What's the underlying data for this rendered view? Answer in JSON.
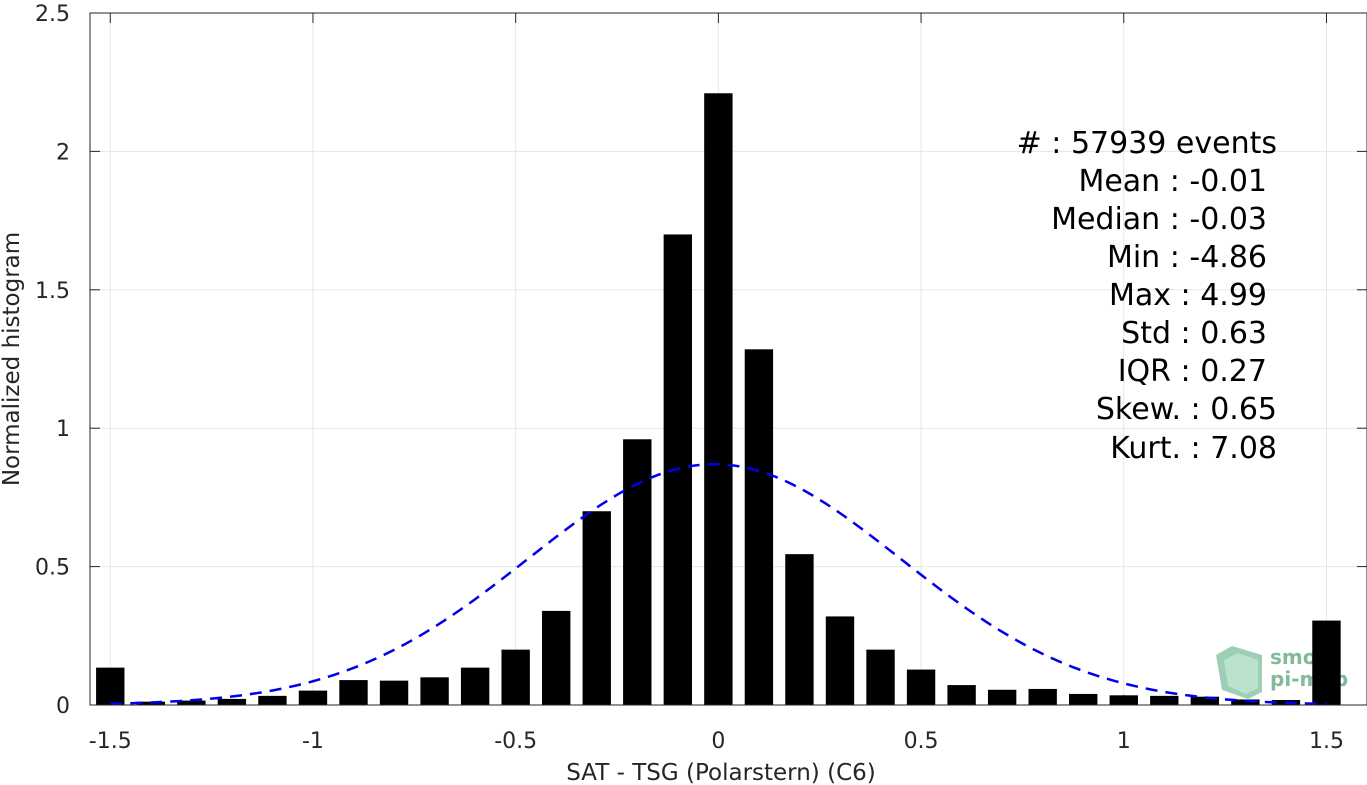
{
  "chart_data": {
    "type": "bar",
    "xlabel": "SAT - TSG (Polarstern) (C6)",
    "ylabel": "Normalized histogram",
    "xlim": [
      -1.55,
      1.6
    ],
    "ylim": [
      0,
      2.5
    ],
    "x_ticks": [
      -1.5,
      -1,
      -0.5,
      0,
      0.5,
      1,
      1.5
    ],
    "x_tick_labels": [
      "-1.5",
      "-1",
      "-0.5",
      "0",
      "0.5",
      "1",
      "1.5"
    ],
    "y_ticks": [
      0,
      0.5,
      1,
      1.5,
      2,
      2.5
    ],
    "y_tick_labels": [
      "0",
      "0.5",
      "1",
      "1.5",
      "2",
      "2.5"
    ],
    "grid": true,
    "bin_width": 0.1,
    "bar_width_fraction": 0.7,
    "bars": {
      "x": [
        -1.5,
        -1.4,
        -1.3,
        -1.2,
        -1.1,
        -1.0,
        -0.9,
        -0.8,
        -0.7,
        -0.6,
        -0.5,
        -0.4,
        -0.3,
        -0.2,
        -0.1,
        0.0,
        0.1,
        0.2,
        0.3,
        0.4,
        0.5,
        0.6,
        0.7,
        0.8,
        0.9,
        1.0,
        1.1,
        1.2,
        1.3,
        1.4,
        1.5
      ],
      "values": [
        0.135,
        0.012,
        0.016,
        0.022,
        0.033,
        0.052,
        0.09,
        0.088,
        0.1,
        0.135,
        0.2,
        0.34,
        0.7,
        0.96,
        1.7,
        2.21,
        1.285,
        0.545,
        0.32,
        0.2,
        0.128,
        0.072,
        0.055,
        0.058,
        0.04,
        0.035,
        0.033,
        0.03,
        0.02,
        0.018,
        0.305
      ],
      "color": "#000000"
    },
    "fit": {
      "type": "normal",
      "mean": -0.01,
      "std": 0.46,
      "peak": 0.87,
      "x_range": [
        -1.5,
        1.5
      ],
      "style": "dashed",
      "color": "#0000ee"
    },
    "stats": [
      {
        "label": "#  : 57939 events"
      },
      {
        "label": "Mean : -0.01"
      },
      {
        "label": "Median : -0.03"
      },
      {
        "label": "Min : -4.86"
      },
      {
        "label": "Max : 4.99"
      },
      {
        "label": "Std : 0.63"
      },
      {
        "label": "IQR : 0.27"
      },
      {
        "label": "Skew. : 0.65"
      },
      {
        "label": "Kurt. : 7.08"
      }
    ],
    "logo": {
      "line1": "smos",
      "line2": "pi-mep",
      "color": "#2e8b57"
    }
  }
}
